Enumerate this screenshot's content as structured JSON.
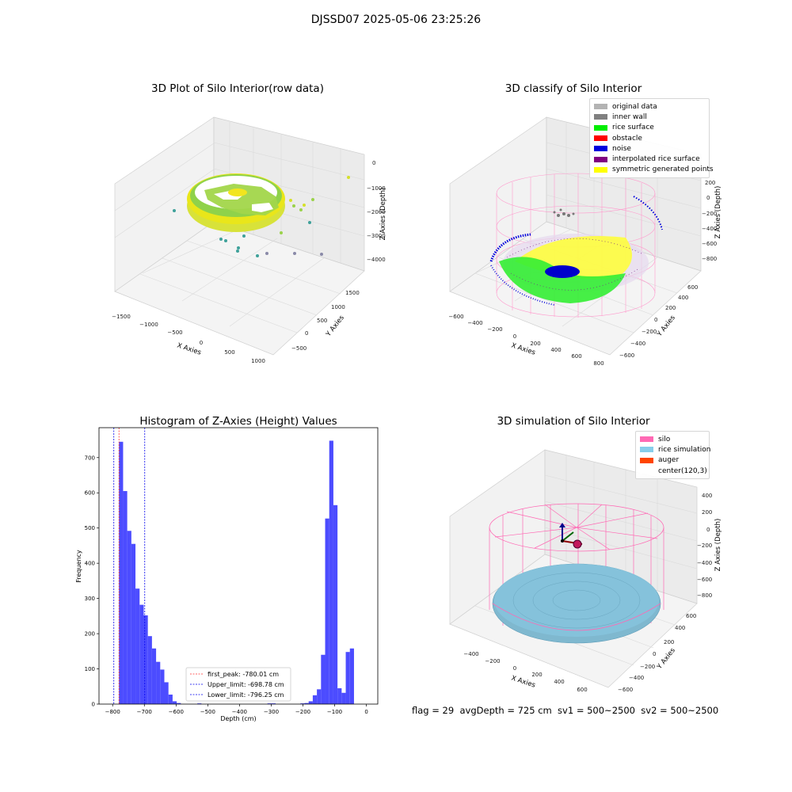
{
  "figure": {
    "suptitle": "DJSSD07 2025-05-06 23:25:26",
    "status_line": "flag = 29  avgDepth = 725 cm  sv1 = 500~2500  sv2 = 500~2500"
  },
  "chart_data": [
    {
      "type": "scatter",
      "panel": "raw",
      "title": "3D Plot of Silo Interior(row data)",
      "xlabel": "X Axies",
      "ylabel": "Y Axies",
      "zlabel": "Z Axies (Depth)",
      "x_ticks": [
        "−1500",
        "−1000",
        "−500",
        "0",
        "500",
        "1000"
      ],
      "y_ticks": [
        "−500",
        "0",
        "500",
        "1000",
        "1500"
      ],
      "z_ticks": [
        "0",
        "−1000",
        "−2000",
        "−3000",
        "−4000"
      ],
      "colors": {
        "ring_outer": "#e8e816",
        "ring_inner": "#7fd34e",
        "outlier": "#3a9a9a"
      }
    },
    {
      "type": "scatter",
      "panel": "classify",
      "title": "3D classify of Silo Interior",
      "xlabel": "X Axies",
      "ylabel": "Y Axies",
      "zlabel": "Z Axies (Depth)",
      "x_ticks": [
        "−600",
        "−400",
        "−200",
        "0",
        "200",
        "400",
        "600",
        "800"
      ],
      "y_ticks": [
        "−600",
        "−400",
        "−200",
        "0",
        "200",
        "400",
        "600"
      ],
      "z_ticks": [
        "200",
        "0",
        "−200",
        "−400",
        "−600",
        "−800"
      ],
      "legend": [
        {
          "label": "original data",
          "color": "#b3b3b3"
        },
        {
          "label": "inner wall",
          "color": "#808080"
        },
        {
          "label": "rice surface",
          "color": "#00ee00"
        },
        {
          "label": "obstacle",
          "color": "#ff0000"
        },
        {
          "label": "noise",
          "color": "#0000dd"
        },
        {
          "label": "interpolated rice surface",
          "color": "#800080"
        },
        {
          "label": "symmetric generated points",
          "color": "#ffff00"
        }
      ]
    },
    {
      "type": "bar",
      "panel": "histogram",
      "title": "Histogram of Z-Axies (Height) Values",
      "xlabel": "Depth (cm)",
      "ylabel": "Frequency",
      "xlim": [
        -843,
        36
      ],
      "ylim": [
        0,
        785
      ],
      "bin_width": 13,
      "x_ticks": [
        -800,
        -700,
        -600,
        -500,
        -400,
        -300,
        -200,
        -100,
        0
      ],
      "y_ticks": [
        0,
        100,
        200,
        300,
        400,
        500,
        600,
        700
      ],
      "bar_color": "#4c4cff",
      "bins": [
        {
          "x0": -780,
          "count": 745
        },
        {
          "x0": -767,
          "count": 605
        },
        {
          "x0": -754,
          "count": 492
        },
        {
          "x0": -741,
          "count": 455
        },
        {
          "x0": -728,
          "count": 328
        },
        {
          "x0": -715,
          "count": 282
        },
        {
          "x0": -702,
          "count": 252
        },
        {
          "x0": -689,
          "count": 193
        },
        {
          "x0": -676,
          "count": 158
        },
        {
          "x0": -663,
          "count": 120
        },
        {
          "x0": -650,
          "count": 98
        },
        {
          "x0": -637,
          "count": 62
        },
        {
          "x0": -624,
          "count": 27
        },
        {
          "x0": -611,
          "count": 8
        },
        {
          "x0": -598,
          "count": 3
        },
        {
          "x0": -533,
          "count": 2
        },
        {
          "x0": -312,
          "count": 2
        },
        {
          "x0": -299,
          "count": 2
        },
        {
          "x0": -208,
          "count": 2
        },
        {
          "x0": -195,
          "count": 3
        },
        {
          "x0": -182,
          "count": 8
        },
        {
          "x0": -169,
          "count": 25
        },
        {
          "x0": -156,
          "count": 42
        },
        {
          "x0": -143,
          "count": 140
        },
        {
          "x0": -130,
          "count": 527
        },
        {
          "x0": -117,
          "count": 748
        },
        {
          "x0": -104,
          "count": 565
        },
        {
          "x0": -91,
          "count": 45
        },
        {
          "x0": -78,
          "count": 32
        },
        {
          "x0": -65,
          "count": 148
        },
        {
          "x0": -52,
          "count": 158
        }
      ],
      "vlines": [
        {
          "x": -780.01,
          "color": "#ff3333",
          "label": "first_peak: -780.01 cm"
        },
        {
          "x": -698.78,
          "color": "#0000ee",
          "label": "Upper_limit: -698.78 cm"
        },
        {
          "x": -796.25,
          "color": "#0000ee",
          "label": "Lower_limit: -796.25 cm"
        }
      ]
    },
    {
      "type": "scatter",
      "panel": "simulation",
      "title": "3D simulation of Silo Interior",
      "xlabel": "X Axies",
      "ylabel": "Y Axies",
      "zlabel": "Z Axies (Depth)",
      "x_ticks": [
        "−400",
        "−200",
        "0",
        "200",
        "400",
        "600"
      ],
      "y_ticks": [
        "−600",
        "−400",
        "−200",
        "0",
        "200",
        "400",
        "600"
      ],
      "z_ticks": [
        "400",
        "200",
        "0",
        "−200",
        "−400",
        "−600",
        "−800"
      ],
      "legend": [
        {
          "label": "silo",
          "color": "#ff69b4"
        },
        {
          "label": "rice simulation",
          "color": "#87ceeb"
        },
        {
          "label": "auger",
          "color": "#ff4500"
        },
        {
          "label": "center(120,3)",
          "color": "#ffffff"
        }
      ]
    }
  ]
}
